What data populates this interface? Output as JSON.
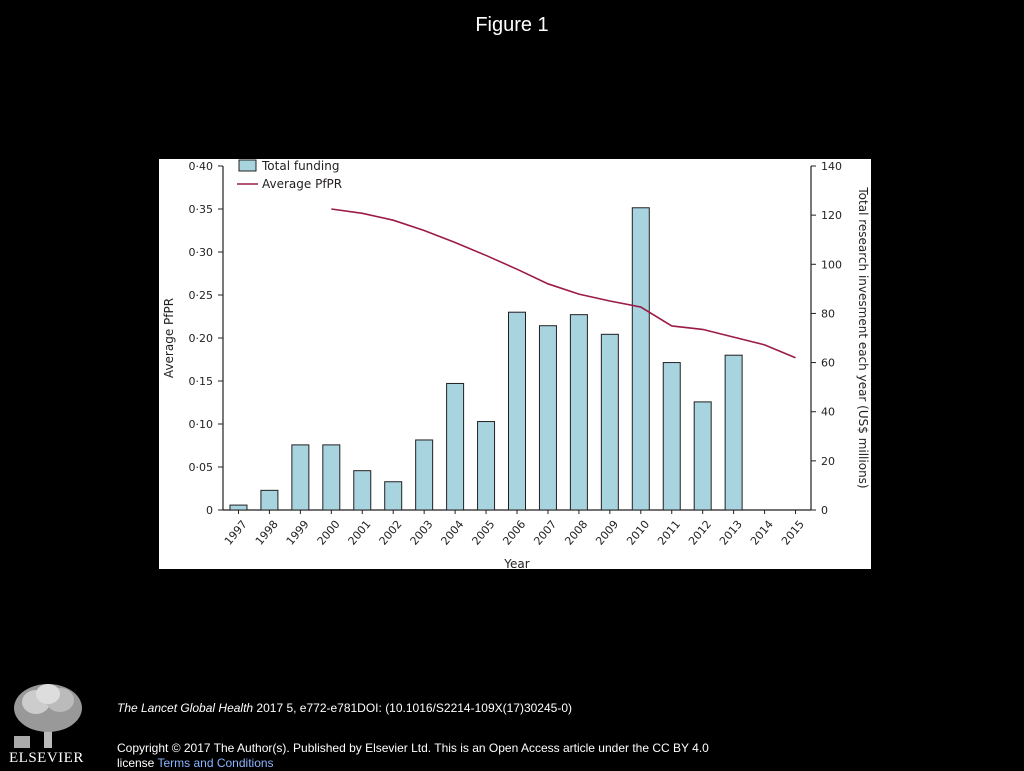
{
  "slide": {
    "title": "Figure 1"
  },
  "citation": {
    "journal": "The Lancet Global Health",
    "details": " 2017 5, e772-e781DOI: (10.1016/S2214-109X(17)30245-0)"
  },
  "copyright": {
    "text": "Copyright © 2017 The Author(s). Published by Elsevier Ltd. This is an Open Access article under the CC BY 4.0 license ",
    "link": "Terms and Conditions"
  },
  "logo": {
    "icon": "elsevier-tree-icon",
    "wordmark": "ELSEVIER"
  },
  "chart_data": {
    "type": "bar",
    "xlabel": "Year",
    "ylabel_left": "Average PfPR",
    "ylabel_right": "Total research invesment each year (US$ millions)",
    "categories": [
      "1997",
      "1998",
      "1999",
      "2000",
      "2001",
      "2002",
      "2003",
      "2004",
      "2005",
      "2006",
      "2007",
      "2008",
      "2009",
      "2010",
      "2011",
      "2012",
      "2013",
      "2014",
      "2015"
    ],
    "left_axis": {
      "ylim": [
        0,
        0.4
      ],
      "ticks": [
        "0",
        "0·05",
        "0·10",
        "0·15",
        "0·20",
        "0·25",
        "0·30",
        "0·35",
        "0·40"
      ]
    },
    "right_axis": {
      "ylim": [
        0,
        140
      ],
      "ticks": [
        "0",
        "20",
        "40",
        "60",
        "80",
        "100",
        "120",
        "140"
      ]
    },
    "legend": {
      "position": "top-left",
      "bar_label": "Total funding",
      "line_label": "Average PfPR"
    },
    "series": [
      {
        "name": "Total funding",
        "kind": "bar",
        "axis": "right",
        "color": "#a8d4e0",
        "values": [
          2,
          8,
          26.5,
          26.5,
          16,
          11.5,
          28.5,
          51.5,
          36,
          80.5,
          75,
          79.5,
          71.5,
          123,
          60,
          44,
          63,
          null,
          null
        ]
      },
      {
        "name": "Average PfPR",
        "kind": "line",
        "axis": "left",
        "color": "#9b1b48",
        "values": [
          null,
          null,
          null,
          0.35,
          0.345,
          0.337,
          0.325,
          0.311,
          0.296,
          0.28,
          0.263,
          0.251,
          0.243,
          0.236,
          0.214,
          0.21,
          0.201,
          0.192,
          0.177
        ]
      }
    ],
    "grid": false
  }
}
